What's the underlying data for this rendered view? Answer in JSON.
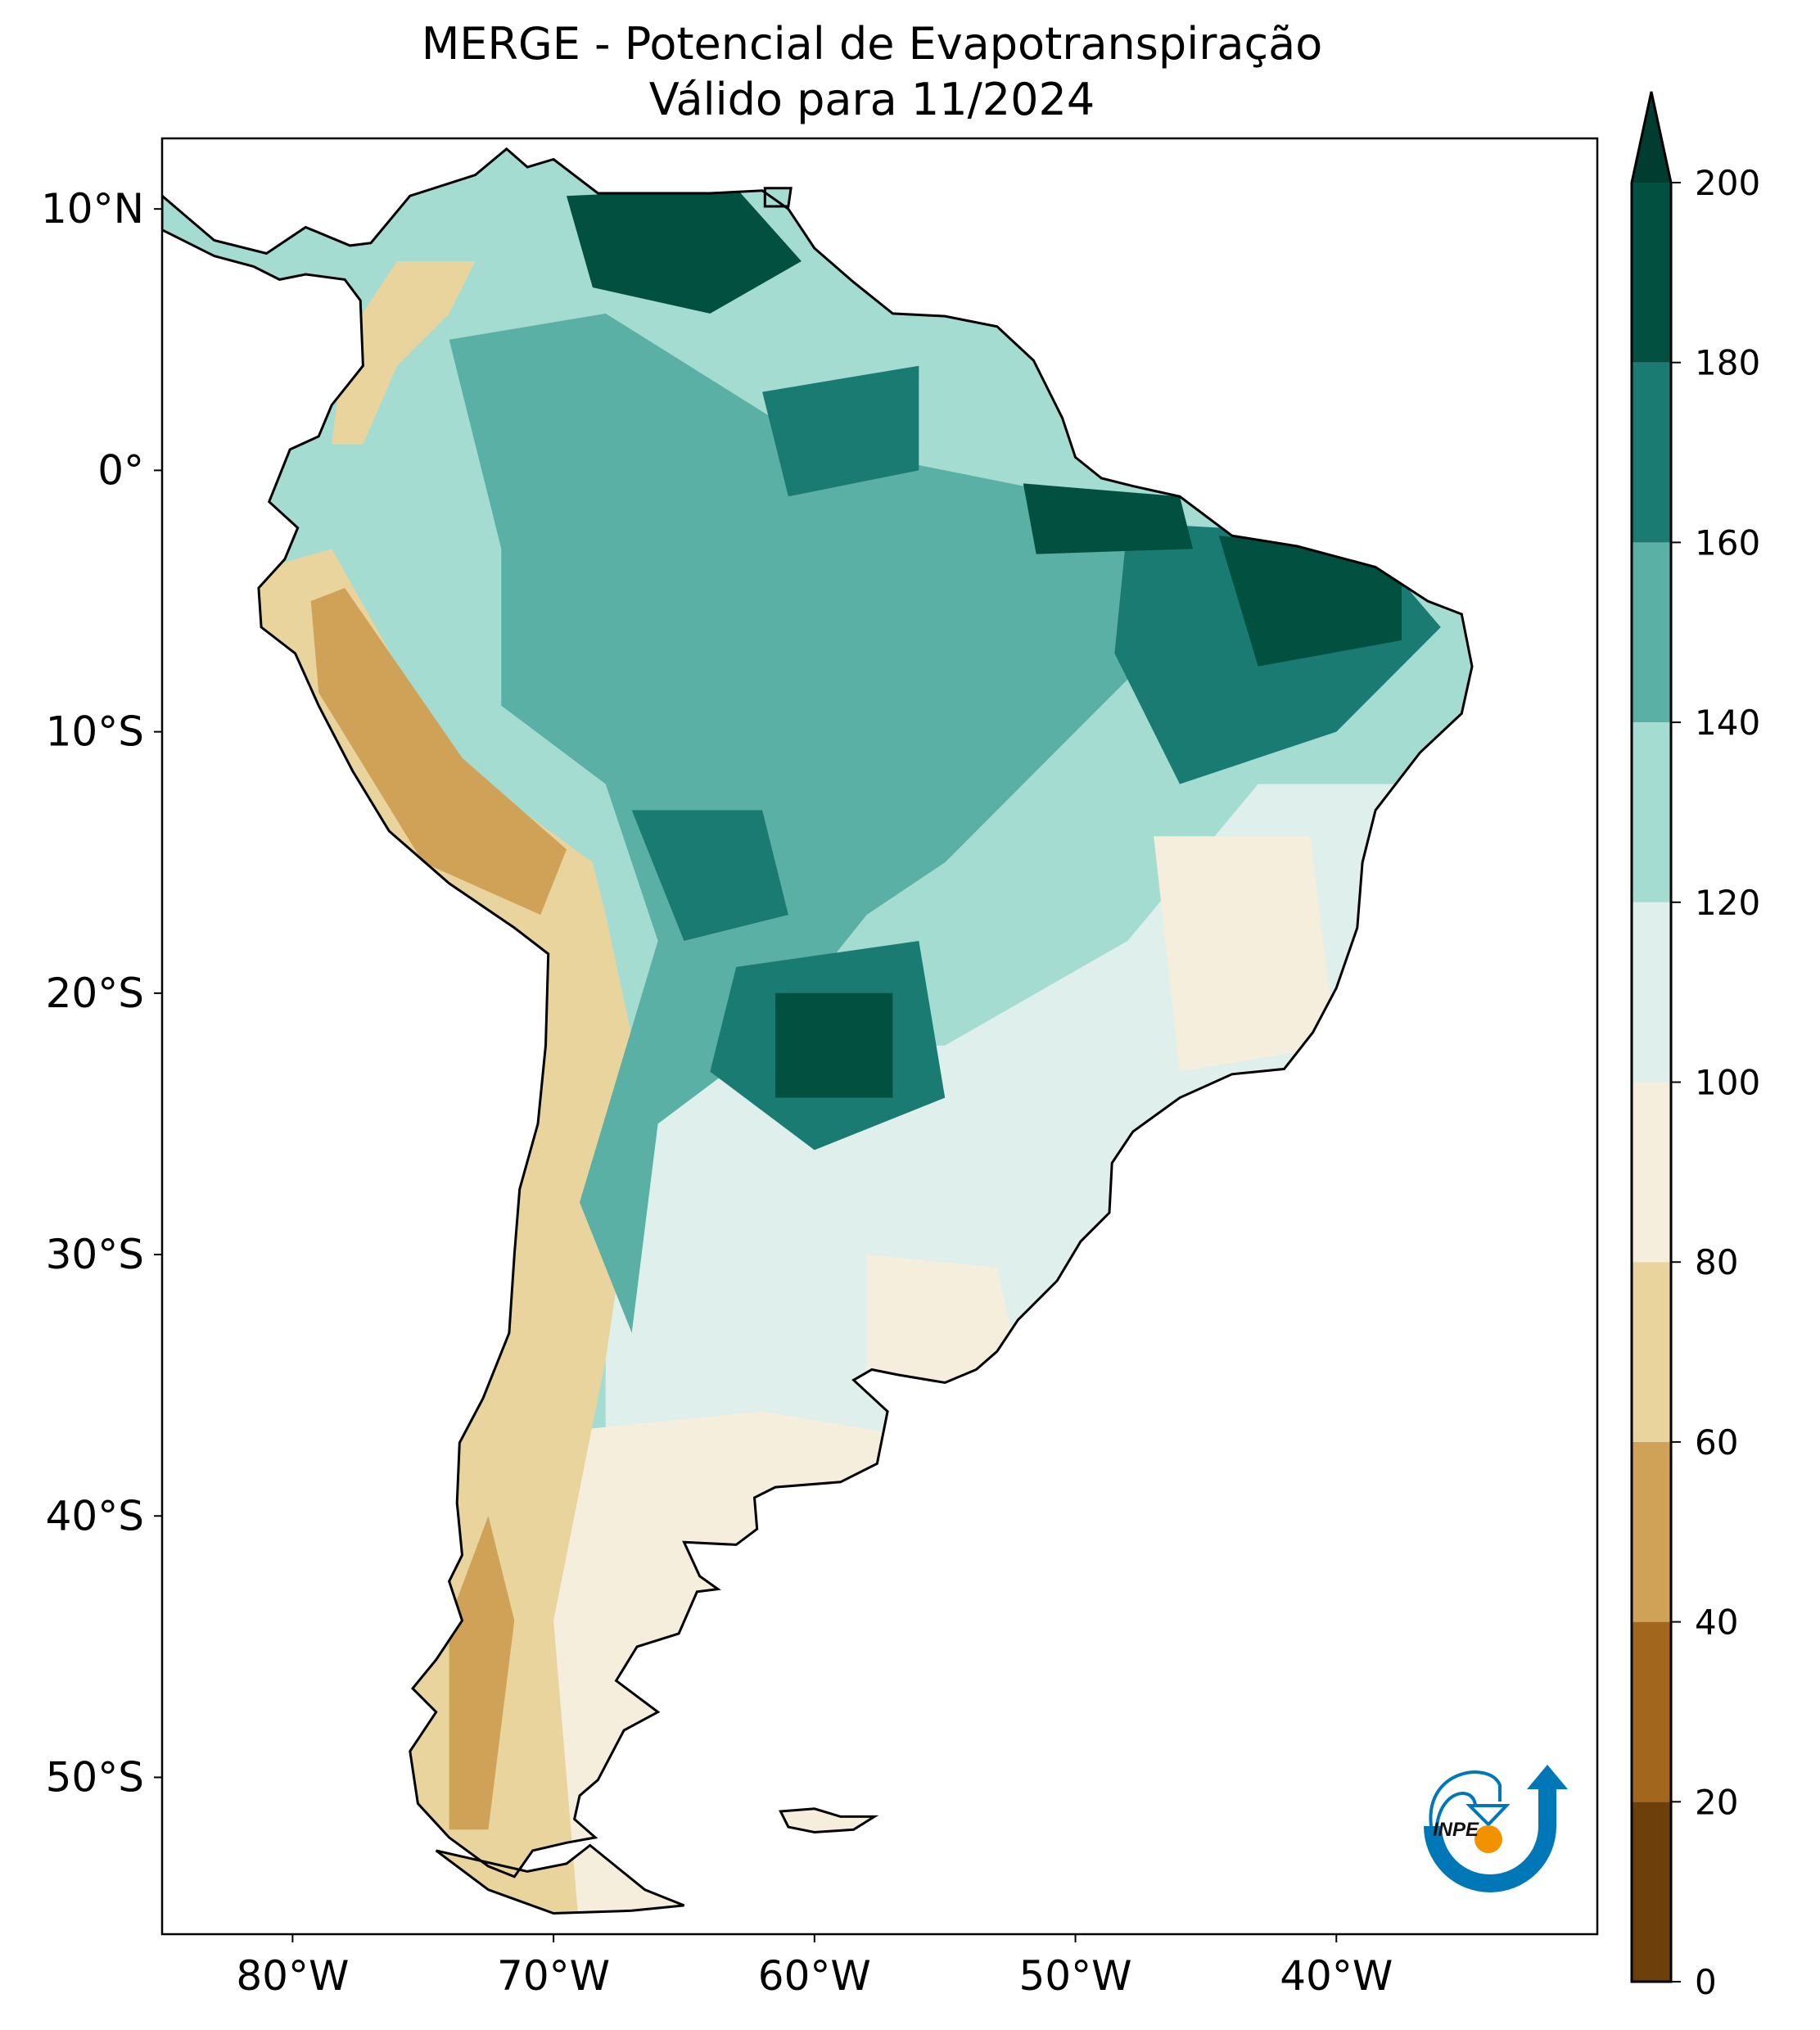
{
  "title": {
    "line1": "MERGE - Potencial de Evapotranspiração",
    "line2": "Válido para 11/2024"
  },
  "map": {
    "extent_deg": {
      "lon_min": -85,
      "lon_max": -30,
      "lat_min": -56,
      "lat_max": 12.7
    },
    "lat_ticks": [
      {
        "value": 10,
        "label": "10°N"
      },
      {
        "value": 0,
        "label": "0°"
      },
      {
        "value": -10,
        "label": "10°S"
      },
      {
        "value": -20,
        "label": "20°S"
      },
      {
        "value": -30,
        "label": "30°S"
      },
      {
        "value": -40,
        "label": "40°S"
      },
      {
        "value": -50,
        "label": "50°S"
      }
    ],
    "lon_ticks": [
      {
        "value": -80,
        "label": "80°W"
      },
      {
        "value": -70,
        "label": "70°W"
      },
      {
        "value": -60,
        "label": "60°W"
      },
      {
        "value": -50,
        "label": "50°W"
      },
      {
        "value": -40,
        "label": "40°W"
      }
    ]
  },
  "colorbar": {
    "min": 0,
    "max": 200,
    "extend": "max",
    "levels": [
      0,
      20,
      40,
      60,
      80,
      100,
      120,
      140,
      160,
      180,
      200
    ],
    "tick_labels": [
      "0",
      "20",
      "40",
      "60",
      "80",
      "100",
      "120",
      "140",
      "160",
      "180",
      "200"
    ],
    "colors": [
      "#6c3f0b",
      "#a2661d",
      "#cfa257",
      "#e9d49e",
      "#f5eedc",
      "#dff0ec",
      "#a5dcd2",
      "#5ab0a5",
      "#1a7b73",
      "#02503f"
    ],
    "extend_color": "#003c30"
  },
  "logo": {
    "text": "INPE",
    "blue": "#0077b6",
    "orange": "#f39200"
  }
}
